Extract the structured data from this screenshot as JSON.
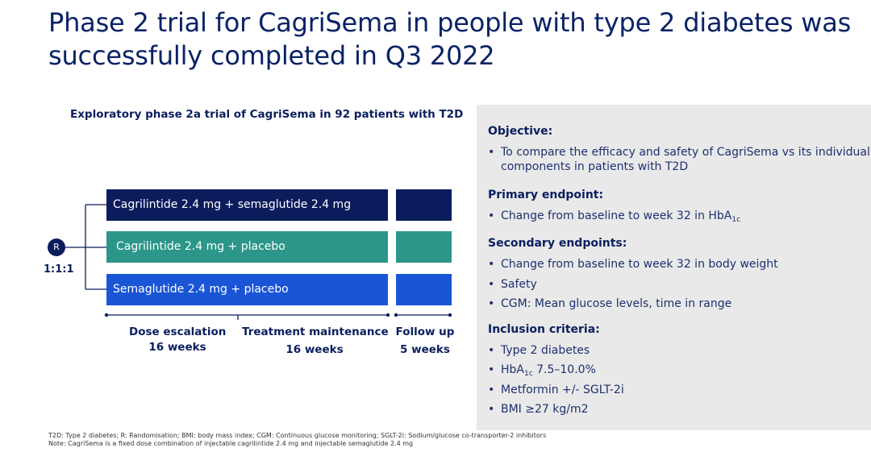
{
  "title": "Phase 2 trial for CagriSema in people with type 2 diabetes was successfully completed in Q3 2022",
  "diagram": {
    "subtitle": "Exploratory phase 2a trial of CagriSema in 92 patients with T2D",
    "randomization_label": "R",
    "ratio": "1:1:1",
    "arms": [
      {
        "label": "Cagrilintide 2.4 mg + semaglutide 2.4 mg",
        "color": "#0b1c5c"
      },
      {
        "label": "Cagrilintide 2.4 mg + placebo",
        "color": "#2b9689"
      },
      {
        "label": "Semaglutide 2.4 mg  + placebo",
        "color": "#1a55d6"
      }
    ],
    "phases": [
      {
        "name": "Dose escalation",
        "duration": "16 weeks"
      },
      {
        "name": "Treatment maintenance",
        "duration": "16 weeks"
      },
      {
        "name": "Follow up",
        "duration": "5 weeks"
      }
    ]
  },
  "panel": {
    "objective_title": "Objective:",
    "objective_items": [
      "To compare the efficacy and safety of CagriSema vs its individual",
      "components in patients with T2D"
    ],
    "primary_title": "Primary endpoint:",
    "primary_item": "Change from baseline to week 32 in HbA",
    "primary_sub": "1c",
    "secondary_title": "Secondary endpoints:",
    "secondary_items": [
      "Change from baseline to week 32 in body weight",
      "Safety",
      "CGM: Mean glucose levels, time in range"
    ],
    "inclusion_title": "Inclusion criteria:",
    "inclusion_items": {
      "t2d": "Type 2 diabetes",
      "hba_prefix": "HbA",
      "hba_sub": "1c",
      "hba_suffix": " 7.5–10.0%",
      "metformin": "Metformin +/- SGLT-2i",
      "bmi": "BMI ≥27 kg/m2"
    }
  },
  "footnotes": {
    "abbreviations": "T2D: Type 2 diabetes; R: Randomisation; BMI: body mass index; CGM: Continuous glucose monitoring; SGLT-2i: Sodium/glucose co-transporter-2 inhibitors",
    "note": "Note: CagriSema is a fixed dose combination of injectable cagrilintide 2.4 mg and injectable semaglutide 2.4 mg"
  }
}
